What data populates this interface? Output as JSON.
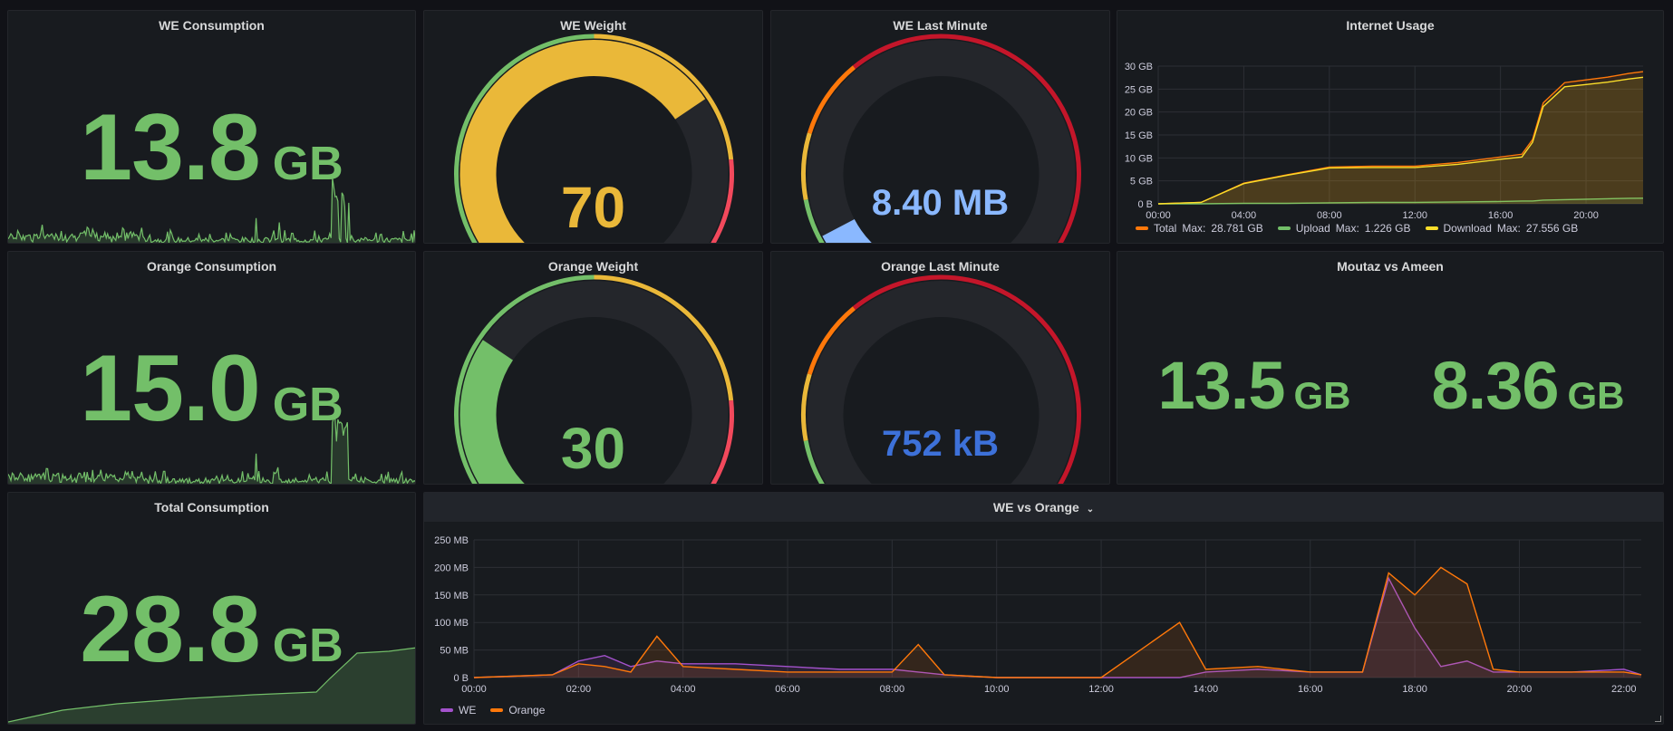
{
  "colors": {
    "green": "#73bf69",
    "yellow": "#eab839",
    "red": "#f2495c",
    "orange": "#ff780a",
    "purple": "#a352cc",
    "blue_light": "#8ab8ff",
    "blue_dark": "#3d71d9"
  },
  "we_consumption": {
    "title": "WE Consumption",
    "value": "13.8",
    "unit": "GB"
  },
  "orange_consumption": {
    "title": "Orange Consumption",
    "value": "15.0",
    "unit": "GB"
  },
  "total_consumption": {
    "title": "Total Consumption",
    "value": "28.8",
    "unit": "GB"
  },
  "we_weight": {
    "title": "WE Weight",
    "value": "70",
    "fraction": 0.7
  },
  "orange_weight": {
    "title": "Orange Weight",
    "value": "30",
    "fraction": 0.3
  },
  "we_last_minute": {
    "title": "WE Last Minute",
    "value": "8.40 MB",
    "fraction": 0.08
  },
  "orange_last_minute": {
    "title": "Orange Last Minute",
    "value": "752 kB",
    "fraction": 0.01
  },
  "moutaz_vs_ameen": {
    "title": "Moutaz vs Ameen",
    "left": {
      "value": "13.5",
      "unit": "GB"
    },
    "right": {
      "value": "8.36",
      "unit": "GB"
    }
  },
  "internet_usage": {
    "title": "Internet Usage",
    "legend": [
      {
        "label": "Total",
        "max_label": "Max:",
        "max": "28.781 GB",
        "color": "#ff780a"
      },
      {
        "label": "Upload",
        "max_label": "Max:",
        "max": "1.226 GB",
        "color": "#73bf69"
      },
      {
        "label": "Download",
        "max_label": "Max:",
        "max": "27.556 GB",
        "color": "#fade2a"
      }
    ]
  },
  "we_vs_orange": {
    "title": "WE vs Orange",
    "legend": [
      {
        "label": "WE",
        "color": "#a352cc"
      },
      {
        "label": "Orange",
        "color": "#ff780a"
      }
    ]
  },
  "chart_data": [
    {
      "type": "line",
      "title": "Internet Usage",
      "x": [
        "00:00",
        "02:00",
        "04:00",
        "06:00",
        "08:00",
        "10:00",
        "12:00",
        "14:00",
        "16:00",
        "17:00",
        "17:30",
        "18:00",
        "19:00",
        "20:00",
        "21:00",
        "22:00",
        "22:40"
      ],
      "series": [
        {
          "name": "Total",
          "values": [
            0,
            0.3,
            4.5,
            6.3,
            8,
            8.2,
            8.2,
            9,
            10.2,
            10.8,
            14,
            22,
            26.4,
            27,
            27.6,
            28.4,
            28.8
          ]
        },
        {
          "name": "Upload",
          "values": [
            0,
            0,
            0.1,
            0.1,
            0.2,
            0.3,
            0.3,
            0.4,
            0.5,
            0.6,
            0.6,
            0.8,
            0.9,
            1.0,
            1.1,
            1.2,
            1.23
          ]
        },
        {
          "name": "Download",
          "values": [
            0,
            0.3,
            4.4,
            6.2,
            7.8,
            7.9,
            7.9,
            8.6,
            9.7,
            10.2,
            13.4,
            21.2,
            25.5,
            26,
            26.5,
            27.2,
            27.56
          ]
        }
      ],
      "yticks": [
        "0 B",
        "5 GB",
        "10 GB",
        "15 GB",
        "20 GB",
        "25 GB",
        "30 GB"
      ],
      "xticks": [
        "00:00",
        "04:00",
        "08:00",
        "12:00",
        "16:00",
        "20:00"
      ],
      "ylim": [
        0,
        30
      ]
    },
    {
      "type": "line",
      "title": "WE vs Orange",
      "x": [
        "00:00",
        "01:30",
        "02:00",
        "02:30",
        "03:00",
        "03:30",
        "04:00",
        "05:00",
        "06:00",
        "07:00",
        "08:00",
        "08:30",
        "09:00",
        "10:00",
        "12:00",
        "13:30",
        "14:00",
        "15:00",
        "16:00",
        "17:00",
        "17:30",
        "18:00",
        "18:30",
        "19:00",
        "19:30",
        "20:00",
        "21:00",
        "22:00",
        "22:20"
      ],
      "series": [
        {
          "name": "WE",
          "values": [
            0,
            5,
            30,
            40,
            20,
            30,
            25,
            25,
            20,
            15,
            15,
            10,
            5,
            0,
            0,
            0,
            10,
            15,
            10,
            10,
            180,
            90,
            20,
            30,
            10,
            10,
            10,
            15,
            5
          ]
        },
        {
          "name": "Orange",
          "values": [
            0,
            5,
            25,
            20,
            10,
            75,
            20,
            15,
            10,
            10,
            10,
            60,
            5,
            0,
            0,
            100,
            15,
            20,
            10,
            10,
            190,
            150,
            200,
            170,
            15,
            10,
            10,
            10,
            5
          ]
        }
      ],
      "yticks": [
        "0 B",
        "50 MB",
        "100 MB",
        "150 MB",
        "200 MB",
        "250 MB"
      ],
      "xticks": [
        "00:00",
        "02:00",
        "04:00",
        "06:00",
        "08:00",
        "10:00",
        "12:00",
        "14:00",
        "16:00",
        "18:00",
        "20:00",
        "22:00"
      ],
      "ylim": [
        0,
        250
      ]
    }
  ]
}
